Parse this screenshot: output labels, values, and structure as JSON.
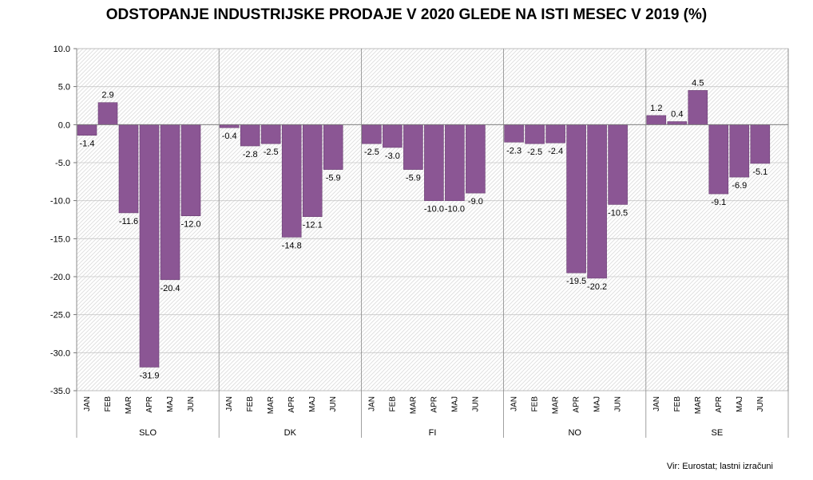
{
  "chart_data": {
    "type": "bar",
    "title": "ODSTOPANJE INDUSTRIJSKE PRODAJE  V 2020 GLEDE NA ISTI MESEC V 2019 (%)",
    "source": "Vir: Eurostat; lastni izračuni",
    "xlabel": "",
    "ylabel": "",
    "ylim": [
      -35,
      10
    ],
    "yticks": [
      "10.0",
      "5.0",
      "0.0",
      "-5.0",
      "-10.0",
      "-15.0",
      "-20.0",
      "-25.0",
      "-30.0",
      "-35.0"
    ],
    "ytick_values": [
      10,
      5,
      0,
      -5,
      -10,
      -15,
      -20,
      -25,
      -30,
      -35
    ],
    "grid": true,
    "bar_color": "#8b5694",
    "months": [
      "JAN",
      "FEB",
      "MAR",
      "APR",
      "MAJ",
      "JUN"
    ],
    "groups": [
      {
        "name": "SLO",
        "values": [
          -1.4,
          2.9,
          -11.6,
          -31.9,
          -20.4,
          -12.0
        ],
        "labels": [
          "-1.4",
          "2.9",
          "-11.6",
          "-31.9",
          "-20.4",
          "-12.0"
        ]
      },
      {
        "name": "DK",
        "values": [
          -0.4,
          -2.8,
          -2.5,
          -14.8,
          -12.1,
          -5.9
        ],
        "labels": [
          "-0.4",
          "-2.8",
          "-2.5",
          "-14.8",
          "-12.1",
          "-5.9"
        ]
      },
      {
        "name": "FI",
        "values": [
          -2.5,
          -3.0,
          -5.9,
          -10.0,
          -10.0,
          -9.0
        ],
        "labels": [
          "-2.5",
          "-3.0",
          "-5.9",
          "-10.0",
          "-10.0",
          "-9.0"
        ]
      },
      {
        "name": "NO",
        "values": [
          -2.3,
          -2.5,
          -2.4,
          -19.5,
          -20.2,
          -10.5
        ],
        "labels": [
          "-2.3",
          "-2.5",
          "-2.4",
          "-19.5",
          "-20.2",
          "-10.5"
        ]
      },
      {
        "name": "SE",
        "values": [
          1.2,
          0.4,
          4.5,
          -9.1,
          -6.9,
          -5.1
        ],
        "labels": [
          "1.2",
          "0.4",
          "4.5",
          "-9.1",
          "-6.9",
          "-5.1"
        ]
      }
    ]
  }
}
